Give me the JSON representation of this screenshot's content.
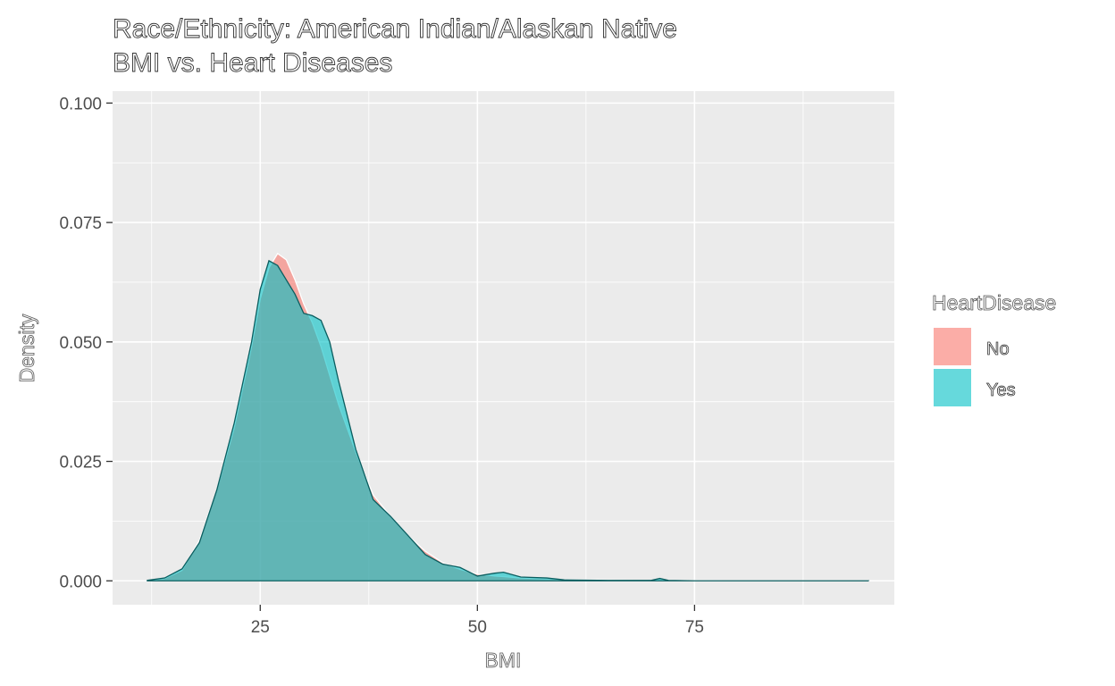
{
  "chart_data": {
    "type": "area",
    "subtype": "density",
    "title": "Race/Ethnicity: American Indian/Alaskan Native",
    "subtitle": "BMI vs. Heart Diseases",
    "xlabel": "BMI",
    "ylabel": "Density",
    "xlim": [
      8,
      98
    ],
    "ylim": [
      -0.005,
      0.1025
    ],
    "x_ticks": [
      25,
      50,
      75
    ],
    "x_tick_labels": [
      "25",
      "50",
      "75"
    ],
    "y_ticks": [
      0,
      0.025,
      0.05,
      0.075,
      0.1
    ],
    "y_tick_labels": [
      "0.000",
      "0.025",
      "0.050",
      "0.075",
      "0.100"
    ],
    "grid": true,
    "legend": {
      "title": "HeartDisease",
      "position": "right",
      "entries": [
        {
          "label": "No",
          "color": "#F8766D"
        },
        {
          "label": "Yes",
          "color": "#00BFC4"
        }
      ]
    },
    "x": [
      12,
      14,
      16,
      18,
      20,
      22,
      24,
      25,
      26,
      27,
      28,
      29,
      30,
      31,
      32,
      33,
      34,
      36,
      38,
      40,
      42,
      44,
      46,
      48,
      50,
      52,
      53,
      55,
      58,
      60,
      65,
      70,
      71,
      72,
      75,
      80,
      85,
      90,
      95
    ],
    "series": [
      {
        "name": "No",
        "color": "#F8766D",
        "values": [
          0.0001,
          0.0005,
          0.0022,
          0.0085,
          0.019,
          0.032,
          0.049,
          0.059,
          0.0655,
          0.0685,
          0.0672,
          0.063,
          0.058,
          0.054,
          0.049,
          0.043,
          0.037,
          0.027,
          0.018,
          0.0135,
          0.0095,
          0.0062,
          0.0038,
          0.0024,
          0.0014,
          0.001,
          0.0009,
          0.0006,
          0.0004,
          0.0003,
          0.00015,
          0.0001,
          0.0001,
          0.0001,
          5e-05,
          2e-05,
          1e-05,
          1e-05,
          0.0
        ]
      },
      {
        "name": "Yes",
        "color": "#00BFC4",
        "values": [
          0.0001,
          0.0006,
          0.0025,
          0.008,
          0.019,
          0.033,
          0.05,
          0.061,
          0.067,
          0.066,
          0.063,
          0.06,
          0.056,
          0.0555,
          0.0545,
          0.05,
          0.042,
          0.0275,
          0.017,
          0.0135,
          0.0095,
          0.0055,
          0.0035,
          0.0028,
          0.001,
          0.0016,
          0.0018,
          0.0008,
          0.0006,
          0.0002,
          0.0001,
          0.0001,
          0.0005,
          0.0001,
          0.0,
          0.0,
          0.0,
          0.0,
          0.0
        ]
      }
    ]
  }
}
